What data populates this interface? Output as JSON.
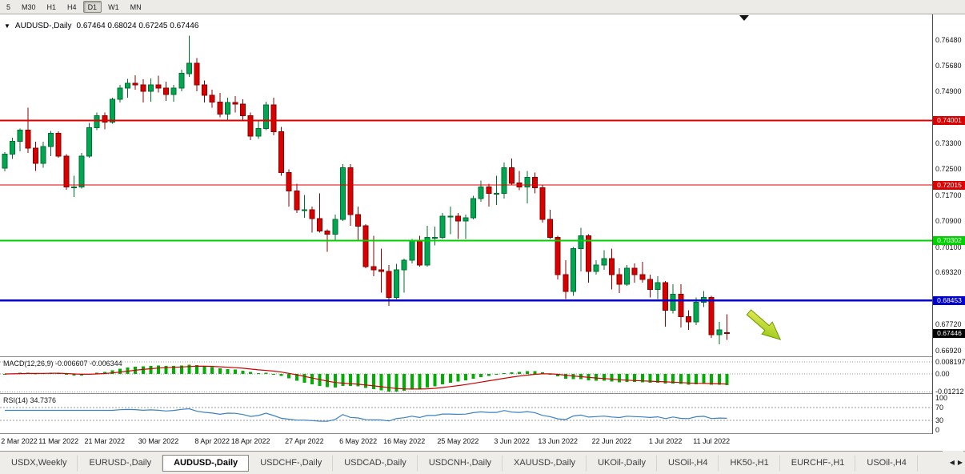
{
  "colors": {
    "candle_up": "#00a651",
    "candle_up_stroke": "#00702f",
    "candle_down": "#d90000",
    "candle_down_stroke": "#8c0000",
    "macd_histogram": "#00b000",
    "macd_signal": "#cc0000",
    "rsi_line": "#3a82c4",
    "arrow_from": "#f2ef5e",
    "arrow_to": "#8cc20e",
    "arrow_stroke": "#6b9a00"
  },
  "icons": {
    "chart_marker": "▼",
    "tab_scroll_left": "◀",
    "tab_scroll_right": "▶"
  },
  "toolbar": {
    "timeframes": [
      {
        "label": "5",
        "active": false
      },
      {
        "label": "M30",
        "active": false
      },
      {
        "label": "H1",
        "active": false
      },
      {
        "label": "H4",
        "active": false
      },
      {
        "label": "D1",
        "active": true
      },
      {
        "label": "W1",
        "active": false
      },
      {
        "label": "MN",
        "active": false
      }
    ]
  },
  "chart": {
    "symbol_title": "AUDUSD-,Daily",
    "ohlc": "0.67464 0.68024 0.67245 0.67446",
    "price_axis": {
      "ticks": [
        "0.76480",
        "0.75680",
        "0.74900",
        "0.73300",
        "0.72500",
        "0.71700",
        "0.70900",
        "0.70100",
        "0.69320",
        "0.67720",
        "0.66920"
      ],
      "levels": [
        {
          "price": 0.74001,
          "label": "0.74001",
          "color": "#dd0000",
          "width": 2
        },
        {
          "price": 0.72015,
          "label": "0.72015",
          "color": "#dd0000",
          "width": 1.3
        },
        {
          "price": 0.70302,
          "label": "0.70302",
          "color": "#00d200",
          "width": 2.2
        },
        {
          "price": 0.68453,
          "label": "0.68453",
          "color": "#0000cc",
          "width": 2.2
        }
      ],
      "current": {
        "price": 0.67446,
        "label": "0.67446",
        "color": "#000000"
      }
    },
    "date_labels": [
      {
        "index": 0,
        "label": "2 Mar 2022"
      },
      {
        "index": 7,
        "label": "11 Mar 2022"
      },
      {
        "index": 13,
        "label": "21 Mar 2022"
      },
      {
        "index": 20,
        "label": "30 Mar 2022"
      },
      {
        "index": 27,
        "label": "8 Apr 2022"
      },
      {
        "index": 32,
        "label": "18 Apr 2022"
      },
      {
        "index": 39,
        "label": "27 Apr 2022"
      },
      {
        "index": 46,
        "label": "6 May 2022"
      },
      {
        "index": 52,
        "label": "16 May 2022"
      },
      {
        "index": 59,
        "label": "25 May 2022"
      },
      {
        "index": 66,
        "label": "3 Jun 2022"
      },
      {
        "index": 72,
        "label": "13 Jun 2022"
      },
      {
        "index": 79,
        "label": "22 Jun 2022"
      },
      {
        "index": 86,
        "label": "1 Jul 2022"
      },
      {
        "index": 92,
        "label": "11 Jul 2022"
      }
    ],
    "candles": [
      [
        0.7253,
        0.7302,
        0.7243,
        0.7297
      ],
      [
        0.7297,
        0.7347,
        0.7282,
        0.7336
      ],
      [
        0.7336,
        0.7375,
        0.7305,
        0.737
      ],
      [
        0.737,
        0.744,
        0.73,
        0.7315
      ],
      [
        0.7315,
        0.7335,
        0.7245,
        0.7268
      ],
      [
        0.7268,
        0.7335,
        0.7255,
        0.732
      ],
      [
        0.732,
        0.7368,
        0.729,
        0.736
      ],
      [
        0.736,
        0.7367,
        0.7285,
        0.729
      ],
      [
        0.729,
        0.7297,
        0.7186,
        0.7195
      ],
      [
        0.7195,
        0.723,
        0.7165,
        0.7195
      ],
      [
        0.7195,
        0.73,
        0.719,
        0.729
      ],
      [
        0.729,
        0.7393,
        0.7285,
        0.7378
      ],
      [
        0.7378,
        0.7425,
        0.737,
        0.7415
      ],
      [
        0.7415,
        0.7425,
        0.7373,
        0.7395
      ],
      [
        0.7395,
        0.747,
        0.739,
        0.7465
      ],
      [
        0.7465,
        0.751,
        0.7455,
        0.75
      ],
      [
        0.75,
        0.7528,
        0.747,
        0.7515
      ],
      [
        0.7515,
        0.754,
        0.7495,
        0.751
      ],
      [
        0.751,
        0.7527,
        0.7455,
        0.749
      ],
      [
        0.749,
        0.753,
        0.7458,
        0.751
      ],
      [
        0.751,
        0.7538,
        0.7487,
        0.75
      ],
      [
        0.75,
        0.752,
        0.746,
        0.748
      ],
      [
        0.748,
        0.751,
        0.7458,
        0.75
      ],
      [
        0.75,
        0.7557,
        0.749,
        0.7545
      ],
      [
        0.7545,
        0.7661,
        0.7535,
        0.7576
      ],
      [
        0.7576,
        0.7593,
        0.749,
        0.751
      ],
      [
        0.751,
        0.7523,
        0.7455,
        0.7478
      ],
      [
        0.7478,
        0.7495,
        0.744,
        0.7457
      ],
      [
        0.7457,
        0.7485,
        0.741,
        0.742
      ],
      [
        0.742,
        0.747,
        0.74,
        0.7455
      ],
      [
        0.7455,
        0.7475,
        0.7425,
        0.745
      ],
      [
        0.745,
        0.7465,
        0.7398,
        0.7415
      ],
      [
        0.7415,
        0.7425,
        0.734,
        0.7352
      ],
      [
        0.7352,
        0.74,
        0.7343,
        0.7375
      ],
      [
        0.7375,
        0.7458,
        0.737,
        0.7448
      ],
      [
        0.7448,
        0.747,
        0.7355,
        0.7365
      ],
      [
        0.7365,
        0.738,
        0.723,
        0.724
      ],
      [
        0.724,
        0.725,
        0.7135,
        0.7183
      ],
      [
        0.7183,
        0.7205,
        0.7115,
        0.7125
      ],
      [
        0.7125,
        0.717,
        0.71,
        0.7125
      ],
      [
        0.7125,
        0.7135,
        0.7055,
        0.7098
      ],
      [
        0.7098,
        0.7175,
        0.7055,
        0.706
      ],
      [
        0.706,
        0.7065,
        0.6995,
        0.705
      ],
      [
        0.705,
        0.711,
        0.703,
        0.7095
      ],
      [
        0.7095,
        0.7265,
        0.709,
        0.7255
      ],
      [
        0.7255,
        0.7266,
        0.7075,
        0.711
      ],
      [
        0.711,
        0.7135,
        0.703,
        0.7075
      ],
      [
        0.7075,
        0.708,
        0.6945,
        0.695
      ],
      [
        0.695,
        0.7045,
        0.692,
        0.694
      ],
      [
        0.694,
        0.7005,
        0.687,
        0.6935
      ],
      [
        0.6935,
        0.6955,
        0.6829,
        0.6855
      ],
      [
        0.6855,
        0.6958,
        0.685,
        0.694
      ],
      [
        0.694,
        0.6975,
        0.687,
        0.697
      ],
      [
        0.697,
        0.7035,
        0.696,
        0.703
      ],
      [
        0.703,
        0.7045,
        0.695,
        0.6955
      ],
      [
        0.6955,
        0.7075,
        0.695,
        0.704
      ],
      [
        0.704,
        0.7073,
        0.7015,
        0.704
      ],
      [
        0.704,
        0.7115,
        0.7035,
        0.7105
      ],
      [
        0.7105,
        0.7135,
        0.705,
        0.7105
      ],
      [
        0.7105,
        0.7115,
        0.7035,
        0.709
      ],
      [
        0.709,
        0.711,
        0.7035,
        0.71
      ],
      [
        0.71,
        0.7168,
        0.7095,
        0.716
      ],
      [
        0.716,
        0.7215,
        0.715,
        0.7195
      ],
      [
        0.7195,
        0.7205,
        0.7135,
        0.7175
      ],
      [
        0.7175,
        0.723,
        0.714,
        0.7175
      ],
      [
        0.7175,
        0.727,
        0.716,
        0.7255
      ],
      [
        0.7255,
        0.7283,
        0.72,
        0.7207
      ],
      [
        0.7207,
        0.7245,
        0.7185,
        0.7195
      ],
      [
        0.7195,
        0.7245,
        0.7145,
        0.7225
      ],
      [
        0.7225,
        0.724,
        0.7175,
        0.7193
      ],
      [
        0.7193,
        0.72,
        0.7085,
        0.7095
      ],
      [
        0.7095,
        0.7125,
        0.7035,
        0.704
      ],
      [
        0.704,
        0.7045,
        0.691,
        0.6925
      ],
      [
        0.6925,
        0.697,
        0.685,
        0.6873
      ],
      [
        0.6873,
        0.701,
        0.686,
        0.7005
      ],
      [
        0.7005,
        0.7069,
        0.6935,
        0.7045
      ],
      [
        0.7045,
        0.705,
        0.69,
        0.6935
      ],
      [
        0.6935,
        0.697,
        0.6925,
        0.6955
      ],
      [
        0.6955,
        0.7,
        0.694,
        0.6975
      ],
      [
        0.6975,
        0.7005,
        0.688,
        0.6925
      ],
      [
        0.6925,
        0.6945,
        0.6868,
        0.6895
      ],
      [
        0.6895,
        0.6955,
        0.689,
        0.6945
      ],
      [
        0.6945,
        0.696,
        0.69,
        0.6925
      ],
      [
        0.6925,
        0.6965,
        0.69,
        0.691
      ],
      [
        0.691,
        0.6925,
        0.6855,
        0.688
      ],
      [
        0.688,
        0.692,
        0.685,
        0.69
      ],
      [
        0.69,
        0.6905,
        0.6765,
        0.6815
      ],
      [
        0.6815,
        0.6895,
        0.6805,
        0.6865
      ],
      [
        0.6865,
        0.6895,
        0.6762,
        0.6795
      ],
      [
        0.6795,
        0.6815,
        0.6755,
        0.678
      ],
      [
        0.678,
        0.6855,
        0.677,
        0.684
      ],
      [
        0.684,
        0.6875,
        0.6825,
        0.6855
      ],
      [
        0.6855,
        0.686,
        0.673,
        0.674
      ],
      [
        0.674,
        0.678,
        0.671,
        0.6755
      ],
      [
        0.67464,
        0.68024,
        0.67245,
        0.67446
      ]
    ]
  },
  "macd_panel": {
    "label": "MACD(12,26,9) -0.006607 -0.006344",
    "ticks": [
      {
        "label": "0.008197",
        "value": 0.008197
      },
      {
        "label": "0.00",
        "value": 0
      },
      {
        "label": "-0.01212",
        "value": -0.01212
      }
    ]
  },
  "rsi_panel": {
    "label": "RSI(14) 34.7376",
    "ticks": [
      {
        "label": "100",
        "value": 100
      },
      {
        "label": "70",
        "value": 70
      },
      {
        "label": "30",
        "value": 30
      },
      {
        "label": "0",
        "value": 0
      }
    ],
    "levels": [
      70,
      30
    ]
  },
  "tabs": {
    "items": [
      {
        "label": "USDX,Weekly",
        "active": false
      },
      {
        "label": "EURUSD-,Daily",
        "active": false
      },
      {
        "label": "AUDUSD-,Daily",
        "active": true
      },
      {
        "label": "USDCHF-,Daily",
        "active": false
      },
      {
        "label": "USDCAD-,Daily",
        "active": false
      },
      {
        "label": "USDCNH-,Daily",
        "active": false
      },
      {
        "label": "XAUUSD-,Daily",
        "active": false
      },
      {
        "label": "UKOil-,Daily",
        "active": false
      },
      {
        "label": "USOil-,H4",
        "active": false
      },
      {
        "label": "HK50-,H1",
        "active": false
      },
      {
        "label": "EURCHF-,H1",
        "active": false
      },
      {
        "label": "USOil-,H4",
        "active": false
      }
    ]
  }
}
